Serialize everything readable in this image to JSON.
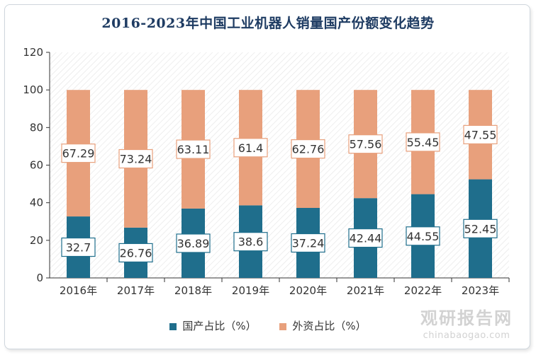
{
  "chart_data": {
    "type": "bar",
    "stacked": true,
    "title": "2016-2023年中国工业机器人销量国产份额变化趋势",
    "categories": [
      "2016年",
      "2017年",
      "2018年",
      "2019年",
      "2020年",
      "2021年",
      "2022年",
      "2023年"
    ],
    "series": [
      {
        "name": "国产占比（%）",
        "color": "#1f6e8c",
        "values": [
          32.7,
          26.76,
          36.89,
          38.6,
          37.24,
          42.44,
          44.55,
          52.45
        ],
        "labels": [
          "32.7",
          "26.76",
          "36.89",
          "38.6",
          "37.24",
          "42.44",
          "44.55",
          "52.45"
        ]
      },
      {
        "name": "外资占比（%）",
        "color": "#e8a07c",
        "values": [
          67.29,
          73.24,
          63.11,
          61.4,
          62.76,
          57.56,
          55.45,
          47.55
        ],
        "labels": [
          "67.29",
          "73.24",
          "63.11",
          "61.4",
          "62.76",
          "57.56",
          "55.45",
          "47.55"
        ]
      }
    ],
    "ylim": [
      0,
      120
    ],
    "yticks": [
      "0",
      "20",
      "40",
      "60",
      "80",
      "100",
      "120"
    ],
    "xlabel": "",
    "ylabel": "",
    "legend": "bottom",
    "grid": false
  },
  "watermark": {
    "logo": "观研报告网",
    "url": "chinabaogao.com"
  }
}
